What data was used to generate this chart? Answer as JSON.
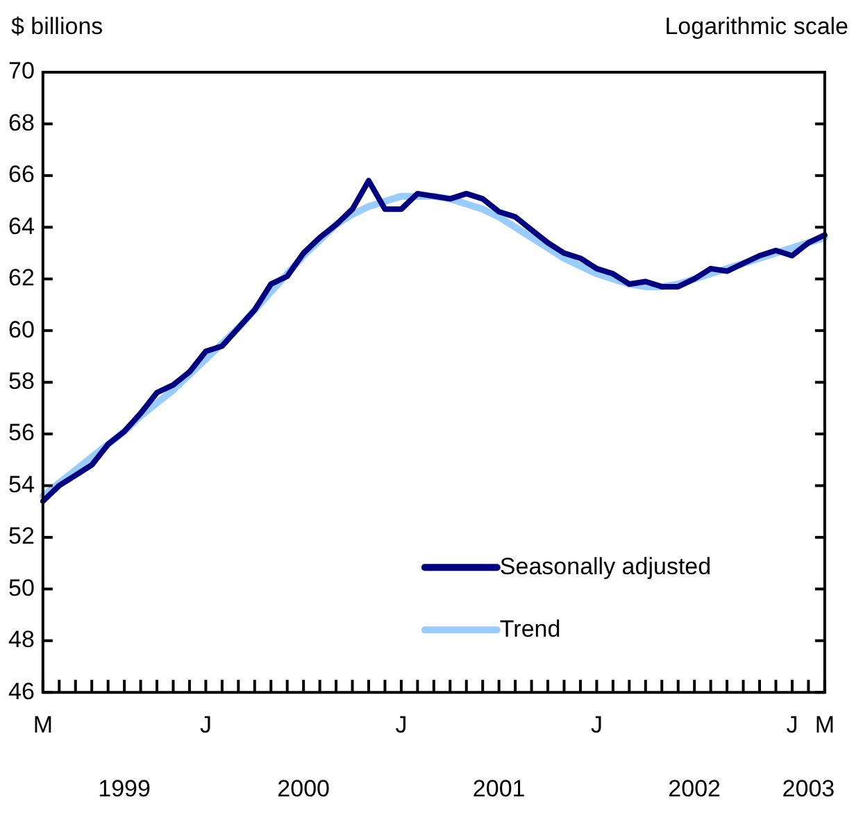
{
  "chart_data": {
    "type": "line",
    "ylabel": "$ billions",
    "annotations": [
      "Logarithmic scale",
      "1999",
      "2000",
      "2001",
      "2002",
      "2003"
    ],
    "categories": [
      "M",
      null,
      null,
      null,
      null,
      null,
      null,
      null,
      null,
      null,
      "J",
      null,
      null,
      null,
      null,
      null,
      null,
      null,
      null,
      null,
      null,
      null,
      "J",
      null,
      null,
      null,
      null,
      null,
      null,
      null,
      null,
      null,
      null,
      null,
      "J",
      null,
      null,
      null,
      null,
      null,
      null,
      null,
      null,
      null,
      null,
      null,
      "J",
      null,
      "M"
    ],
    "series": [
      {
        "name": "Seasonally adjusted",
        "color": "#000080",
        "values": [
          53.4,
          54.0,
          54.4,
          54.8,
          55.6,
          56.1,
          56.8,
          57.6,
          57.9,
          58.4,
          59.2,
          59.4,
          60.1,
          60.8,
          61.8,
          62.1,
          63.0,
          63.6,
          64.1,
          64.7,
          65.8,
          64.7,
          64.7,
          65.3,
          65.2,
          65.1,
          65.3,
          65.1,
          64.6,
          64.4,
          63.9,
          63.4,
          63.0,
          62.8,
          62.4,
          62.2,
          61.8,
          61.9,
          61.7,
          61.7,
          62.0,
          62.4,
          62.3,
          62.6,
          62.9,
          63.1,
          62.9,
          63.4,
          63.7
        ]
      },
      {
        "name": "Trend",
        "color": "#99ccff",
        "values": [
          53.6,
          54.1,
          54.6,
          55.1,
          55.6,
          56.1,
          56.7,
          57.2,
          57.7,
          58.3,
          58.9,
          59.5,
          60.1,
          60.8,
          61.5,
          62.2,
          62.9,
          63.5,
          64.1,
          64.5,
          64.8,
          65.0,
          65.2,
          65.2,
          65.2,
          65.1,
          64.9,
          64.7,
          64.4,
          64.0,
          63.6,
          63.2,
          62.8,
          62.5,
          62.2,
          62.0,
          61.8,
          61.7,
          61.7,
          61.8,
          62.0,
          62.2,
          62.4,
          62.6,
          62.8,
          63.0,
          63.2,
          63.4,
          63.6
        ]
      }
    ],
    "ylim": [
      46,
      70
    ],
    "yticks": [
      46,
      48,
      50,
      52,
      54,
      56,
      58,
      60,
      62,
      64,
      66,
      68,
      70
    ],
    "grid": false,
    "legend": "bottom right",
    "marker": "none",
    "line_style": "solid"
  }
}
